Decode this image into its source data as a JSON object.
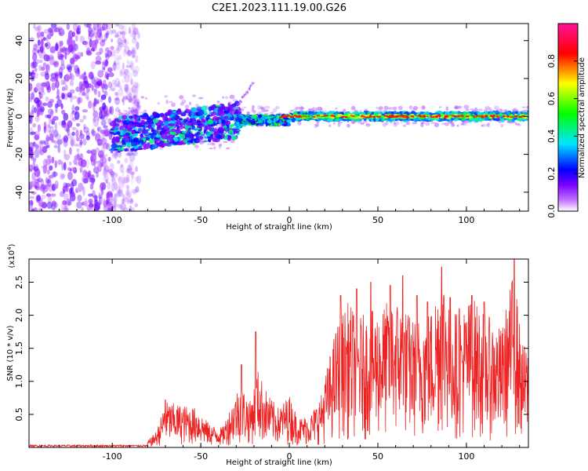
{
  "title": "C2E1.2023.111.19.00.G26",
  "chart_data": [
    {
      "type": "heatmap",
      "xlabel": "Height of straight line (km)",
      "ylabel": "Frequency (Hz)",
      "xlim": [
        -147,
        135
      ],
      "ylim": [
        -50,
        49
      ],
      "xticks": [
        -100,
        -50,
        0,
        50,
        100
      ],
      "yticks": [
        -40,
        -20,
        0,
        20,
        40
      ],
      "xtick_labels": [
        "-100",
        "-50",
        "0",
        "50",
        "100"
      ],
      "ytick_labels": [
        "-40",
        "-20",
        "0",
        "20",
        "40"
      ],
      "colorbar": {
        "label": "Normalized spectral amplitude",
        "range": [
          0,
          1
        ],
        "ticks": [
          0.0,
          0.2,
          0.4,
          0.6,
          0.8
        ],
        "tick_labels": [
          "0.0",
          "0.2",
          "0.4",
          "0.6",
          "0.8"
        ],
        "colormap": [
          "#ffffff",
          "#7a00ff",
          "#0000ff",
          "#00ffff",
          "#00ff00",
          "#ffff00",
          "#ff0000",
          "#ff00aa"
        ]
      },
      "regions": [
        {
          "x": [
            -147,
            -88
          ],
          "y": [
            -50,
            49
          ],
          "kind": "scattered noise",
          "level": [
            0.02,
            0.2
          ]
        },
        {
          "x": [
            -100,
            -30
          ],
          "y": [
            -15,
            8
          ],
          "kind": "turbulent band",
          "level": [
            0.1,
            0.45
          ]
        },
        {
          "x": [
            -30,
            0
          ],
          "y": [
            -4,
            3
          ],
          "kind": "narrowing band",
          "level": [
            0.2,
            0.55
          ]
        },
        {
          "x": [
            0,
            135
          ],
          "y": [
            -2,
            2
          ],
          "kind": "steady carrier",
          "level": [
            0.5,
            0.9
          ]
        }
      ]
    },
    {
      "type": "line",
      "xlabel": "Height of straight line (km)",
      "ylabel": "SNR (10 * v/v)",
      "y_multiplier_label": "(x10",
      "y_multiplier_exp": "4",
      "y_multiplier_close": ")",
      "xlim": [
        -147,
        135
      ],
      "ylim": [
        0,
        2.85
      ],
      "xticks": [
        -100,
        -50,
        0,
        50,
        100
      ],
      "yticks": [
        0.5,
        1.0,
        1.5,
        2.0,
        2.5
      ],
      "xtick_labels": [
        "-100",
        "-50",
        "0",
        "50",
        "100"
      ],
      "ytick_labels": [
        "0.5",
        "1.0",
        "1.5",
        "2.0",
        "2.5"
      ],
      "series_color": "#ee2222",
      "envelope": [
        [
          -147,
          0.03
        ],
        [
          -110,
          0.04
        ],
        [
          -90,
          0.06
        ],
        [
          -80,
          0.1
        ],
        [
          -75,
          0.25
        ],
        [
          -70,
          0.7
        ],
        [
          -62,
          0.65
        ],
        [
          -52,
          0.6
        ],
        [
          -45,
          0.35
        ],
        [
          -38,
          0.3
        ],
        [
          -32,
          0.7
        ],
        [
          -28,
          1.0
        ],
        [
          -22,
          0.7
        ],
        [
          -18,
          1.2
        ],
        [
          -12,
          0.8
        ],
        [
          -6,
          0.6
        ],
        [
          0,
          0.8
        ],
        [
          5,
          0.45
        ],
        [
          12,
          0.5
        ],
        [
          18,
          0.8
        ],
        [
          22,
          1.3
        ],
        [
          27,
          1.9
        ],
        [
          33,
          2.2
        ],
        [
          40,
          2.0
        ],
        [
          50,
          2.1
        ],
        [
          60,
          2.3
        ],
        [
          70,
          1.95
        ],
        [
          80,
          2.1
        ],
        [
          86,
          2.75
        ],
        [
          95,
          2.0
        ],
        [
          103,
          2.3
        ],
        [
          112,
          2.0
        ],
        [
          120,
          1.8
        ],
        [
          127,
          2.75
        ],
        [
          131,
          1.6
        ],
        [
          135,
          1.5
        ]
      ],
      "peaks": [
        {
          "x": 29,
          "y": 2.3
        },
        {
          "x": 38,
          "y": 2.4
        },
        {
          "x": 46,
          "y": 2.5
        },
        {
          "x": 57,
          "y": 2.45
        },
        {
          "x": 64,
          "y": 2.6
        },
        {
          "x": 72,
          "y": 2.3
        },
        {
          "x": 78,
          "y": 2.2
        },
        {
          "x": 86,
          "y": 2.73
        },
        {
          "x": 96,
          "y": 2.1
        },
        {
          "x": 103,
          "y": 2.3
        },
        {
          "x": 110,
          "y": 2.2
        },
        {
          "x": 127,
          "y": 2.85
        },
        {
          "x": -27,
          "y": 1.25
        },
        {
          "x": -19,
          "y": 1.75
        },
        {
          "x": -70,
          "y": 0.72
        }
      ]
    }
  ]
}
